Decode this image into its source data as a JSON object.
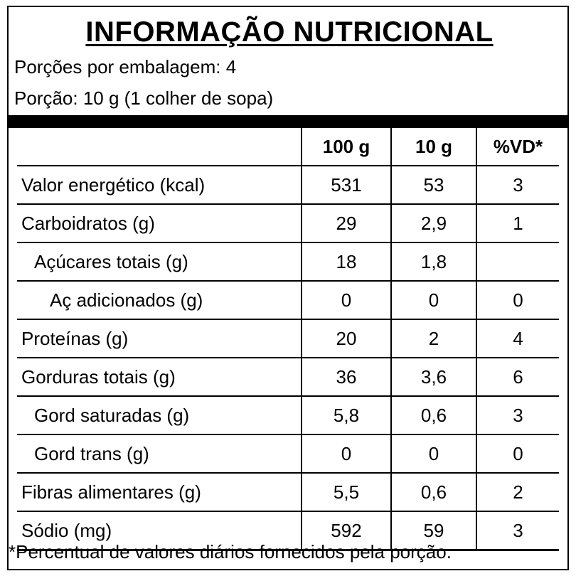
{
  "title": "INFORMAÇÃO NUTRICIONAL",
  "servings_per_package": "Porções por embalagem: 4",
  "serving_size": "Porção: 10 g (1 colher de sopa)",
  "table": {
    "headers": [
      "",
      "100 g",
      "10 g",
      "%VD*"
    ],
    "rows": [
      {
        "name": "Valor energético (kcal)",
        "per100": "531",
        "perServing": "53",
        "vd": "3"
      },
      {
        "name": "Carboidratos (g)",
        "per100": "29",
        "perServing": "2,9",
        "vd": "1"
      },
      {
        "name": "Açúcares totais (g)",
        "per100": "18",
        "perServing": "1,8",
        "vd": ""
      },
      {
        "name": "Aç adicionados (g)",
        "per100": "0",
        "perServing": "0",
        "vd": "0"
      },
      {
        "name": "Proteínas (g)",
        "per100": "20",
        "perServing": "2",
        "vd": "4"
      },
      {
        "name": "Gorduras totais (g)",
        "per100": "36",
        "perServing": "3,6",
        "vd": "6"
      },
      {
        "name": "Gord saturadas (g)",
        "per100": "5,8",
        "perServing": "0,6",
        "vd": "3"
      },
      {
        "name": "Gord trans (g)",
        "per100": "0",
        "perServing": "0",
        "vd": "0"
      },
      {
        "name": "Fibras alimentares (g)",
        "per100": "5,5",
        "perServing": "0,6",
        "vd": "2"
      },
      {
        "name": "Sódio (mg)",
        "per100": "592",
        "perServing": "59",
        "vd": "3"
      }
    ]
  },
  "footnote": "*Percentual de valores diários fornecidos pela porção."
}
